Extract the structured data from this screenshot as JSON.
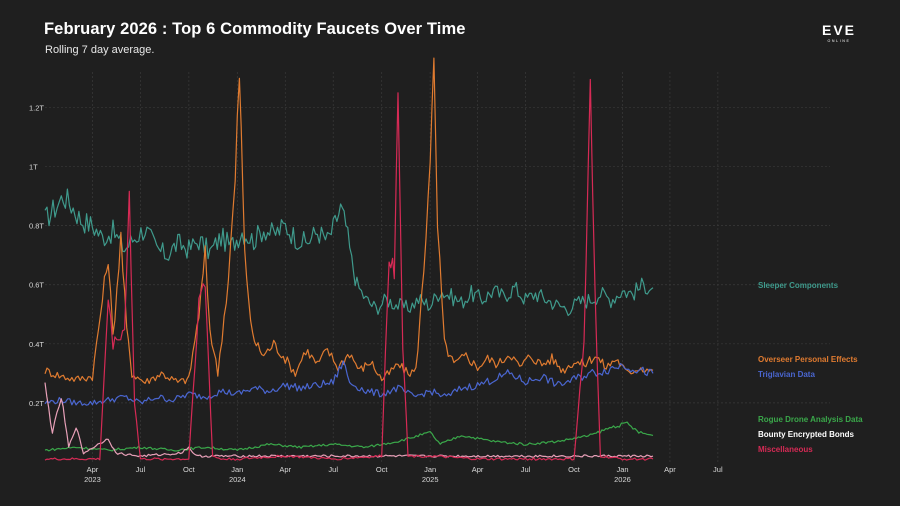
{
  "header": {
    "title": "February 2026 : Top 6 Commodity Faucets Over Time",
    "subtitle": "Rolling 7 day average."
  },
  "logo": {
    "text": "EVE",
    "subtext": "ONLINE"
  },
  "chart_data": {
    "type": "line",
    "title": "February 2026 : Top 6 Commodity Faucets Over Time",
    "subtitle": "Rolling 7 day average.",
    "xlabel": "",
    "ylabel": "",
    "x_range": [
      "2023-01-01",
      "2026-08-31"
    ],
    "y_range": [
      0,
      1.32
    ],
    "y_unit": "trillion",
    "grid": true,
    "legend": "labels at right end of lines",
    "y_ticks": [
      {
        "value": 0.2,
        "label": "0.2T"
      },
      {
        "value": 0.4,
        "label": "0.4T"
      },
      {
        "value": 0.6,
        "label": "0.6T"
      },
      {
        "value": 0.8,
        "label": "0.8T"
      },
      {
        "value": 1.0,
        "label": "1T"
      },
      {
        "value": 1.2,
        "label": "1.2T"
      }
    ],
    "x_ticks": [
      {
        "date": "2023-04-01",
        "label": "Apr",
        "year": "2023"
      },
      {
        "date": "2023-07-01",
        "label": "Jul",
        "year": ""
      },
      {
        "date": "2023-10-01",
        "label": "Oct",
        "year": ""
      },
      {
        "date": "2024-01-01",
        "label": "Jan",
        "year": "2024"
      },
      {
        "date": "2024-04-01",
        "label": "Apr",
        "year": ""
      },
      {
        "date": "2024-07-01",
        "label": "Jul",
        "year": ""
      },
      {
        "date": "2024-10-01",
        "label": "Oct",
        "year": ""
      },
      {
        "date": "2025-01-01",
        "label": "Jan",
        "year": "2025"
      },
      {
        "date": "2025-04-01",
        "label": "Apr",
        "year": ""
      },
      {
        "date": "2025-07-01",
        "label": "Jul",
        "year": ""
      },
      {
        "date": "2025-10-01",
        "label": "Oct",
        "year": ""
      },
      {
        "date": "2026-01-01",
        "label": "Jan",
        "year": "2026"
      },
      {
        "date": "2026-04-01",
        "label": "Apr",
        "year": ""
      },
      {
        "date": "2026-07-01",
        "label": "Jul",
        "year": ""
      }
    ],
    "series": [
      {
        "name": "Sleeper Components",
        "color": "#3f9a8c",
        "points": [
          [
            "2023-01-01",
            0.82
          ],
          [
            "2023-01-20",
            0.86
          ],
          [
            "2023-02-05",
            0.9
          ],
          [
            "2023-02-20",
            0.87
          ],
          [
            "2023-03-10",
            0.82
          ],
          [
            "2023-04-01",
            0.8
          ],
          [
            "2023-04-20",
            0.76
          ],
          [
            "2023-05-10",
            0.78
          ],
          [
            "2023-06-01",
            0.72
          ],
          [
            "2023-06-20",
            0.76
          ],
          [
            "2023-07-10",
            0.79
          ],
          [
            "2023-08-01",
            0.72
          ],
          [
            "2023-08-20",
            0.7
          ],
          [
            "2023-09-10",
            0.74
          ],
          [
            "2023-10-01",
            0.72
          ],
          [
            "2023-10-20",
            0.75
          ],
          [
            "2023-11-10",
            0.71
          ],
          [
            "2023-12-01",
            0.76
          ],
          [
            "2023-12-20",
            0.73
          ],
          [
            "2024-01-10",
            0.78
          ],
          [
            "2024-02-01",
            0.75
          ],
          [
            "2024-02-20",
            0.79
          ],
          [
            "2024-03-10",
            0.77
          ],
          [
            "2024-04-01",
            0.8
          ],
          [
            "2024-04-20",
            0.76
          ],
          [
            "2024-05-10",
            0.74
          ],
          [
            "2024-06-01",
            0.78
          ],
          [
            "2024-06-20",
            0.75
          ],
          [
            "2024-07-01",
            0.79
          ],
          [
            "2024-07-15",
            0.86
          ],
          [
            "2024-07-25",
            0.8
          ],
          [
            "2024-08-05",
            0.68
          ],
          [
            "2024-08-15",
            0.6
          ],
          [
            "2024-09-01",
            0.55
          ],
          [
            "2024-09-20",
            0.52
          ],
          [
            "2024-10-10",
            0.55
          ],
          [
            "2024-11-01",
            0.53
          ],
          [
            "2024-11-20",
            0.52
          ],
          [
            "2024-12-10",
            0.55
          ],
          [
            "2025-01-01",
            0.53
          ],
          [
            "2025-01-20",
            0.58
          ],
          [
            "2025-02-10",
            0.56
          ],
          [
            "2025-03-01",
            0.54
          ],
          [
            "2025-03-20",
            0.57
          ],
          [
            "2025-04-10",
            0.55
          ],
          [
            "2025-05-01",
            0.58
          ],
          [
            "2025-05-20",
            0.56
          ],
          [
            "2025-06-10",
            0.59
          ],
          [
            "2025-07-01",
            0.55
          ],
          [
            "2025-07-20",
            0.57
          ],
          [
            "2025-08-10",
            0.55
          ],
          [
            "2025-09-01",
            0.53
          ],
          [
            "2025-09-20",
            0.52
          ],
          [
            "2025-10-10",
            0.54
          ],
          [
            "2025-11-01",
            0.55
          ],
          [
            "2025-11-20",
            0.57
          ],
          [
            "2025-12-10",
            0.55
          ],
          [
            "2026-01-01",
            0.58
          ],
          [
            "2026-01-20",
            0.57
          ],
          [
            "2026-02-10",
            0.6
          ],
          [
            "2026-02-28",
            0.59
          ]
        ]
      },
      {
        "name": "Overseer Personal Effects",
        "color": "#e07b30",
        "points": [
          [
            "2023-01-01",
            0.31
          ],
          [
            "2023-02-01",
            0.29
          ],
          [
            "2023-03-01",
            0.28
          ],
          [
            "2023-04-01",
            0.29
          ],
          [
            "2023-04-20",
            0.55
          ],
          [
            "2023-05-01",
            0.7
          ],
          [
            "2023-05-10",
            0.42
          ],
          [
            "2023-05-25",
            0.76
          ],
          [
            "2023-06-05",
            0.45
          ],
          [
            "2023-06-15",
            0.3
          ],
          [
            "2023-07-10",
            0.27
          ],
          [
            "2023-08-10",
            0.3
          ],
          [
            "2023-09-10",
            0.27
          ],
          [
            "2023-10-01",
            0.28
          ],
          [
            "2023-10-20",
            0.5
          ],
          [
            "2023-11-01",
            0.7
          ],
          [
            "2023-11-10",
            0.45
          ],
          [
            "2023-11-25",
            0.3
          ],
          [
            "2023-12-15",
            0.62
          ],
          [
            "2023-12-28",
            0.95
          ],
          [
            "2024-01-05",
            1.32
          ],
          [
            "2024-01-15",
            0.7
          ],
          [
            "2024-01-30",
            0.42
          ],
          [
            "2024-02-20",
            0.36
          ],
          [
            "2024-03-10",
            0.4
          ],
          [
            "2024-04-01",
            0.35
          ],
          [
            "2024-04-20",
            0.3
          ],
          [
            "2024-05-10",
            0.38
          ],
          [
            "2024-06-01",
            0.33
          ],
          [
            "2024-06-20",
            0.38
          ],
          [
            "2024-07-10",
            0.32
          ],
          [
            "2024-08-01",
            0.37
          ],
          [
            "2024-08-20",
            0.31
          ],
          [
            "2024-09-10",
            0.34
          ],
          [
            "2024-10-01",
            0.28
          ],
          [
            "2024-10-15",
            0.3
          ],
          [
            "2024-11-01",
            0.33
          ],
          [
            "2024-11-20",
            0.3
          ],
          [
            "2024-12-05",
            0.31
          ],
          [
            "2024-12-20",
            0.65
          ],
          [
            "2025-01-01",
            1.05
          ],
          [
            "2025-01-08",
            1.32
          ],
          [
            "2025-01-15",
            0.8
          ],
          [
            "2025-01-28",
            0.4
          ],
          [
            "2025-02-15",
            0.33
          ],
          [
            "2025-03-10",
            0.36
          ],
          [
            "2025-04-01",
            0.32
          ],
          [
            "2025-04-20",
            0.35
          ],
          [
            "2025-05-10",
            0.33
          ],
          [
            "2025-06-01",
            0.37
          ],
          [
            "2025-06-20",
            0.32
          ],
          [
            "2025-07-10",
            0.36
          ],
          [
            "2025-08-01",
            0.33
          ],
          [
            "2025-08-20",
            0.35
          ],
          [
            "2025-09-10",
            0.31
          ],
          [
            "2025-10-01",
            0.34
          ],
          [
            "2025-10-20",
            0.33
          ],
          [
            "2025-11-10",
            0.36
          ],
          [
            "2025-12-01",
            0.32
          ],
          [
            "2025-12-20",
            0.35
          ],
          [
            "2026-01-10",
            0.3
          ],
          [
            "2026-02-01",
            0.32
          ],
          [
            "2026-02-28",
            0.31
          ]
        ]
      },
      {
        "name": "Triglavian Data",
        "color": "#4a66d0",
        "points": [
          [
            "2023-01-01",
            0.2
          ],
          [
            "2023-02-01",
            0.21
          ],
          [
            "2023-03-01",
            0.2
          ],
          [
            "2023-04-01",
            0.2
          ],
          [
            "2023-05-01",
            0.21
          ],
          [
            "2023-06-01",
            0.22
          ],
          [
            "2023-07-01",
            0.2
          ],
          [
            "2023-08-01",
            0.22
          ],
          [
            "2023-09-01",
            0.21
          ],
          [
            "2023-10-01",
            0.23
          ],
          [
            "2023-11-01",
            0.22
          ],
          [
            "2023-12-01",
            0.24
          ],
          [
            "2024-01-01",
            0.23
          ],
          [
            "2024-02-01",
            0.25
          ],
          [
            "2024-03-01",
            0.24
          ],
          [
            "2024-04-01",
            0.26
          ],
          [
            "2024-05-01",
            0.25
          ],
          [
            "2024-06-01",
            0.26
          ],
          [
            "2024-07-01",
            0.27
          ],
          [
            "2024-07-20",
            0.34
          ],
          [
            "2024-08-01",
            0.27
          ],
          [
            "2024-09-01",
            0.24
          ],
          [
            "2024-10-01",
            0.23
          ],
          [
            "2024-11-01",
            0.25
          ],
          [
            "2024-12-01",
            0.22
          ],
          [
            "2025-01-01",
            0.24
          ],
          [
            "2025-02-01",
            0.22
          ],
          [
            "2025-03-01",
            0.25
          ],
          [
            "2025-04-01",
            0.26
          ],
          [
            "2025-05-01",
            0.28
          ],
          [
            "2025-06-01",
            0.3
          ],
          [
            "2025-07-01",
            0.27
          ],
          [
            "2025-08-01",
            0.29
          ],
          [
            "2025-09-01",
            0.26
          ],
          [
            "2025-10-01",
            0.28
          ],
          [
            "2025-11-01",
            0.3
          ],
          [
            "2025-12-01",
            0.31
          ],
          [
            "2026-01-01",
            0.33
          ],
          [
            "2026-02-01",
            0.31
          ],
          [
            "2026-02-28",
            0.3
          ]
        ]
      },
      {
        "name": "Rogue Drone Analysis Data",
        "color": "#3aa84a",
        "points": [
          [
            "2023-01-01",
            0.04
          ],
          [
            "2023-03-01",
            0.05
          ],
          [
            "2023-05-01",
            0.04
          ],
          [
            "2023-07-01",
            0.05
          ],
          [
            "2023-09-01",
            0.04
          ],
          [
            "2023-11-01",
            0.05
          ],
          [
            "2024-01-01",
            0.04
          ],
          [
            "2024-03-01",
            0.06
          ],
          [
            "2024-05-01",
            0.05
          ],
          [
            "2024-07-01",
            0.06
          ],
          [
            "2024-09-01",
            0.05
          ],
          [
            "2024-11-01",
            0.07
          ],
          [
            "2025-01-01",
            0.1
          ],
          [
            "2025-01-20",
            0.06
          ],
          [
            "2025-03-01",
            0.09
          ],
          [
            "2025-05-01",
            0.07
          ],
          [
            "2025-07-01",
            0.06
          ],
          [
            "2025-09-01",
            0.07
          ],
          [
            "2025-11-01",
            0.09
          ],
          [
            "2025-12-15",
            0.12
          ],
          [
            "2026-01-10",
            0.13
          ],
          [
            "2026-02-01",
            0.1
          ],
          [
            "2026-02-28",
            0.09
          ]
        ]
      },
      {
        "name": "Bounty Encrypted Bonds",
        "color": "#e8a0b8",
        "points": [
          [
            "2023-01-01",
            0.26
          ],
          [
            "2023-01-15",
            0.1
          ],
          [
            "2023-02-01",
            0.22
          ],
          [
            "2023-02-15",
            0.05
          ],
          [
            "2023-03-01",
            0.12
          ],
          [
            "2023-03-15",
            0.03
          ],
          [
            "2023-05-01",
            0.08
          ],
          [
            "2023-05-15",
            0.03
          ],
          [
            "2023-07-01",
            0.02
          ],
          [
            "2023-09-15",
            0.03
          ],
          [
            "2023-10-01",
            0.05
          ],
          [
            "2023-10-15",
            0.02
          ],
          [
            "2024-01-01",
            0.02
          ],
          [
            "2024-07-01",
            0.02
          ],
          [
            "2025-01-01",
            0.02
          ],
          [
            "2025-07-01",
            0.02
          ],
          [
            "2026-01-01",
            0.02
          ],
          [
            "2026-02-28",
            0.02
          ]
        ]
      },
      {
        "name": "Miscellaneous",
        "color": "#d62a55",
        "points": [
          [
            "2023-01-01",
            0.01
          ],
          [
            "2023-03-01",
            0.01
          ],
          [
            "2023-04-15",
            0.01
          ],
          [
            "2023-05-01",
            0.55
          ],
          [
            "2023-05-10",
            0.4
          ],
          [
            "2023-06-01",
            0.45
          ],
          [
            "2023-06-10",
            0.9
          ],
          [
            "2023-06-20",
            0.2
          ],
          [
            "2023-07-01",
            0.01
          ],
          [
            "2023-10-01",
            0.01
          ],
          [
            "2023-10-20",
            0.55
          ],
          [
            "2023-11-01",
            0.6
          ],
          [
            "2023-11-15",
            0.02
          ],
          [
            "2023-12-01",
            0.01
          ],
          [
            "2024-01-01",
            0.01
          ],
          [
            "2024-04-01",
            0.02
          ],
          [
            "2024-07-01",
            0.01
          ],
          [
            "2024-10-01",
            0.02
          ],
          [
            "2024-10-15",
            0.7
          ],
          [
            "2024-10-25",
            0.65
          ],
          [
            "2024-11-01",
            1.3
          ],
          [
            "2024-11-10",
            0.4
          ],
          [
            "2024-11-20",
            0.02
          ],
          [
            "2025-01-01",
            0.02
          ],
          [
            "2025-04-01",
            0.01
          ],
          [
            "2025-07-01",
            0.01
          ],
          [
            "2025-10-01",
            0.01
          ],
          [
            "2025-10-20",
            0.4
          ],
          [
            "2025-11-01",
            1.25
          ],
          [
            "2025-11-10",
            0.55
          ],
          [
            "2025-11-20",
            0.02
          ],
          [
            "2026-01-01",
            0.01
          ],
          [
            "2026-02-28",
            0.01
          ]
        ]
      }
    ]
  }
}
